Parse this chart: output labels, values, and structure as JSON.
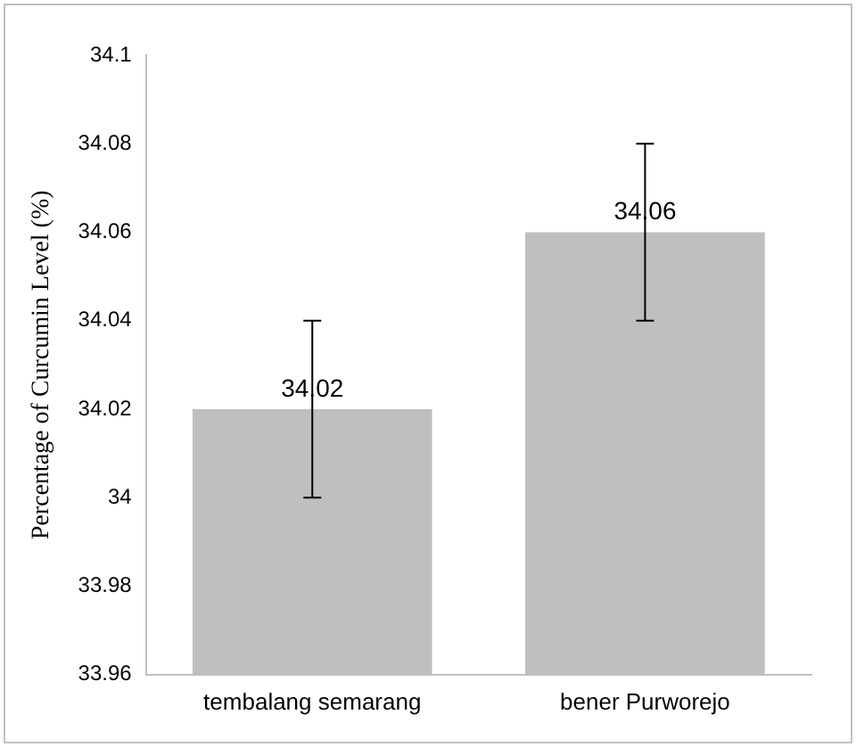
{
  "chart_data": {
    "type": "bar",
    "ylabel": "Percentage of Curcumin Level (%)",
    "categories": [
      "tembalang semarang",
      "bener Purworejo"
    ],
    "values": [
      34.02,
      34.06
    ],
    "color": "#bfbfbf",
    "errors": [
      0.02,
      0.02
    ],
    "ylim": [
      33.96,
      34.1
    ],
    "yticks": [
      33.96,
      33.98,
      34,
      34.02,
      34.04,
      34.06,
      34.08,
      34.1
    ],
    "grid": false,
    "legend": false,
    "data_labels": true
  }
}
